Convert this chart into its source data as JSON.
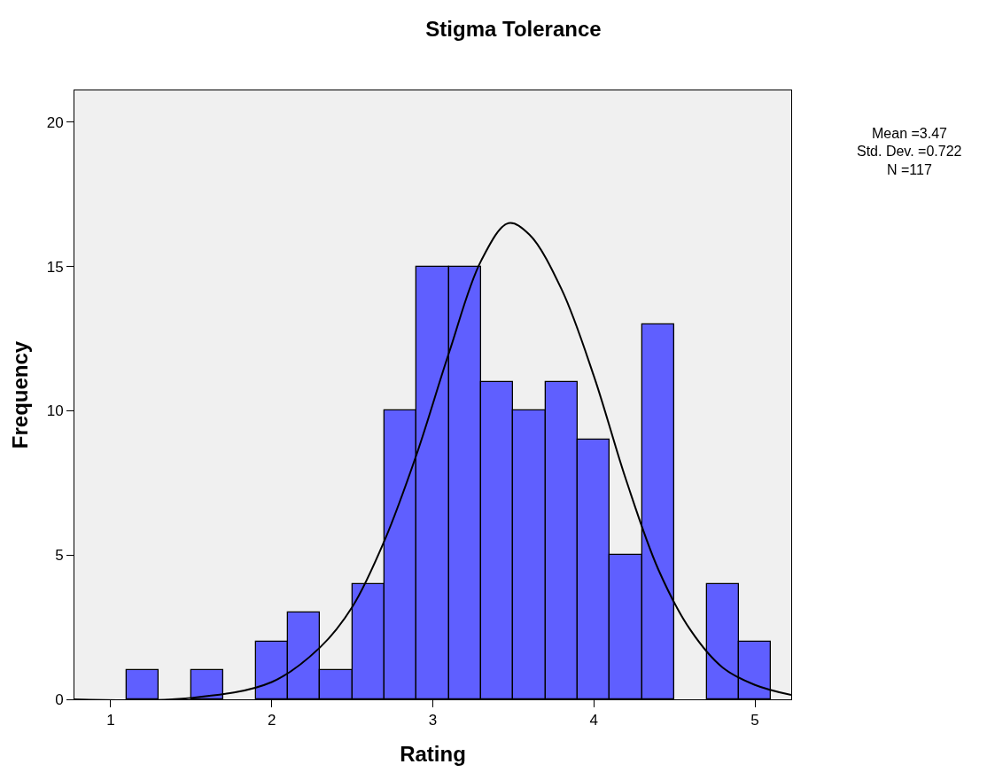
{
  "chart_data": {
    "type": "histogram",
    "title": "Stigma Tolerance",
    "xlabel": "Rating",
    "ylabel": "Frequency",
    "bins": [
      1.1,
      1.3,
      1.5,
      1.7,
      1.9,
      2.1,
      2.3,
      2.5,
      2.7,
      2.9,
      3.1,
      3.3,
      3.5,
      3.7,
      3.9,
      4.1,
      4.3,
      4.5,
      4.7,
      4.9,
      5.1
    ],
    "values": [
      1,
      0,
      1,
      0,
      2,
      3,
      1,
      4,
      10,
      15,
      15,
      11,
      10,
      11,
      9,
      5,
      13,
      0,
      4,
      2
    ],
    "color": "#5f5fff",
    "series": [
      {
        "type": "line",
        "color": "#000000",
        "x": [
          0.775,
          1.5,
          2.0,
          2.3,
          2.5,
          2.7,
          2.9,
          3.1,
          3.3,
          3.47,
          3.6,
          3.8,
          4.0,
          4.2,
          4.4,
          4.6,
          4.8,
          5.0,
          5.225
        ],
        "values": [
          0.0,
          0.05,
          0.6,
          1.8,
          3.2,
          5.5,
          8.5,
          12.0,
          15.2,
          16.5,
          16.1,
          14.2,
          11.2,
          7.6,
          4.5,
          2.4,
          1.1,
          0.5,
          0.15
        ]
      }
    ],
    "xlim": [
      0.775,
      5.225
    ],
    "xticks": [
      1,
      2,
      3,
      4,
      5
    ],
    "ylim": [
      0,
      21.1
    ],
    "yticks": [
      0,
      5,
      10,
      15,
      20
    ],
    "grid": false,
    "annotations": [
      "Mean =3.47",
      "Std. Dev. =0.722",
      "N =117"
    ]
  }
}
